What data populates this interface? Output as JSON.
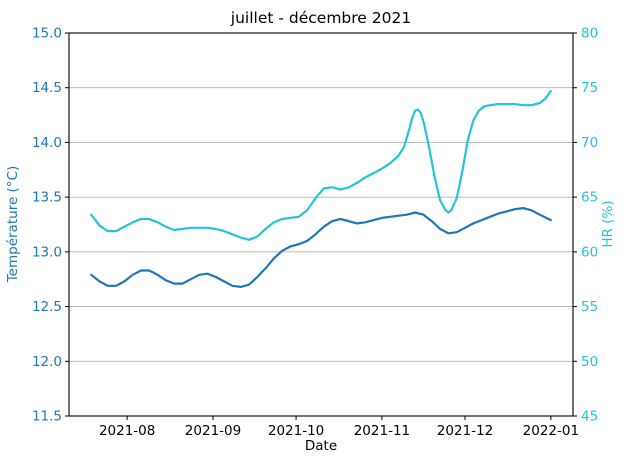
{
  "colors": {
    "temperature": "#1f77b4",
    "humidity": "#25c3d9",
    "grid": "#b2b2b2",
    "spine": "#000000",
    "title_text": "#000000",
    "x_tick_text": "#000000"
  },
  "chart_data": {
    "type": "line",
    "title": "juillet - décembre 2021",
    "xlabel": "Date",
    "ylabel_left": "Température (°C)",
    "ylabel_right": "HR (%)",
    "grid": "horizontal",
    "legend": "none",
    "xlim": [
      "2021-07-11",
      "2022-01-09"
    ],
    "ylim_left": [
      11.5,
      15.0
    ],
    "ylim_right": [
      45,
      80
    ],
    "y_left_ticks": [
      "15.0",
      "14.5",
      "14.0",
      "13.5",
      "13.0",
      "12.5",
      "12.0",
      "11.5"
    ],
    "y_right_ticks": [
      "80",
      "75",
      "70",
      "65",
      "60",
      "55",
      "50",
      "45"
    ],
    "x_ticks": [
      {
        "date": "2021-08-01",
        "label": "2021-08"
      },
      {
        "date": "2021-09-01",
        "label": "2021-09"
      },
      {
        "date": "2021-10-01",
        "label": "2021-10"
      },
      {
        "date": "2021-11-01",
        "label": "2021-11"
      },
      {
        "date": "2021-12-01",
        "label": "2021-12"
      },
      {
        "date": "2022-01-01",
        "label": "2022-01"
      }
    ],
    "series": [
      {
        "name": "Température",
        "axis": "left",
        "unit": "°C",
        "color": "#1f77b4",
        "dates": [
          "2021-07-19",
          "2021-07-22",
          "2021-07-25",
          "2021-07-28",
          "2021-07-31",
          "2021-08-03",
          "2021-08-06",
          "2021-08-09",
          "2021-08-12",
          "2021-08-15",
          "2021-08-18",
          "2021-08-21",
          "2021-08-24",
          "2021-08-27",
          "2021-08-30",
          "2021-09-02",
          "2021-09-05",
          "2021-09-08",
          "2021-09-11",
          "2021-09-14",
          "2021-09-17",
          "2021-09-20",
          "2021-09-23",
          "2021-09-26",
          "2021-09-29",
          "2021-10-02",
          "2021-10-05",
          "2021-10-08",
          "2021-10-11",
          "2021-10-14",
          "2021-10-17",
          "2021-10-20",
          "2021-10-23",
          "2021-10-26",
          "2021-10-29",
          "2021-11-01",
          "2021-11-04",
          "2021-11-07",
          "2021-11-10",
          "2021-11-13",
          "2021-11-16",
          "2021-11-19",
          "2021-11-22",
          "2021-11-25",
          "2021-11-28",
          "2021-12-01",
          "2021-12-04",
          "2021-12-07",
          "2021-12-10",
          "2021-12-13",
          "2021-12-16",
          "2021-12-19",
          "2021-12-22",
          "2021-12-25",
          "2021-12-28",
          "2022-01-01"
        ],
        "values": [
          12.79,
          12.73,
          12.69,
          12.69,
          12.73,
          12.79,
          12.83,
          12.83,
          12.79,
          12.74,
          12.71,
          12.71,
          12.75,
          12.79,
          12.8,
          12.77,
          12.73,
          12.69,
          12.68,
          12.7,
          12.77,
          12.85,
          12.94,
          13.01,
          13.05,
          13.07,
          13.1,
          13.16,
          13.23,
          13.28,
          13.3,
          13.28,
          13.26,
          13.27,
          13.29,
          13.31,
          13.32,
          13.33,
          13.34,
          13.36,
          13.34,
          13.28,
          13.21,
          13.17,
          13.18,
          13.22,
          13.26,
          13.29,
          13.32,
          13.35,
          13.37,
          13.39,
          13.4,
          13.38,
          13.34,
          13.29
        ]
      },
      {
        "name": "HR",
        "axis": "right",
        "unit": "%",
        "color": "#25c3d9",
        "dates": [
          "2021-07-19",
          "2021-07-22",
          "2021-07-25",
          "2021-07-28",
          "2021-07-31",
          "2021-08-03",
          "2021-08-06",
          "2021-08-09",
          "2021-08-12",
          "2021-08-15",
          "2021-08-18",
          "2021-08-21",
          "2021-08-24",
          "2021-08-27",
          "2021-08-30",
          "2021-09-02",
          "2021-09-05",
          "2021-09-08",
          "2021-09-11",
          "2021-09-14",
          "2021-09-17",
          "2021-09-20",
          "2021-09-23",
          "2021-09-26",
          "2021-09-29",
          "2021-10-02",
          "2021-10-05",
          "2021-10-08",
          "2021-10-11",
          "2021-10-14",
          "2021-10-17",
          "2021-10-20",
          "2021-10-23",
          "2021-10-26",
          "2021-10-29",
          "2021-11-01",
          "2021-11-04",
          "2021-11-07",
          "2021-11-09",
          "2021-11-11",
          "2021-11-12",
          "2021-11-13",
          "2021-11-14",
          "2021-11-15",
          "2021-11-16",
          "2021-11-18",
          "2021-11-20",
          "2021-11-22",
          "2021-11-24",
          "2021-11-25",
          "2021-11-26",
          "2021-11-28",
          "2021-11-30",
          "2021-12-02",
          "2021-12-04",
          "2021-12-06",
          "2021-12-08",
          "2021-12-10",
          "2021-12-13",
          "2021-12-16",
          "2021-12-19",
          "2021-12-22",
          "2021-12-25",
          "2021-12-28",
          "2021-12-30",
          "2022-01-01"
        ],
        "values": [
          63.4,
          62.4,
          61.9,
          61.9,
          62.3,
          62.7,
          63.0,
          63.0,
          62.7,
          62.3,
          62.0,
          62.1,
          62.2,
          62.2,
          62.2,
          62.1,
          61.9,
          61.6,
          61.3,
          61.1,
          61.4,
          62.1,
          62.7,
          63.0,
          63.1,
          63.2,
          63.8,
          64.9,
          65.8,
          65.9,
          65.7,
          65.9,
          66.3,
          66.8,
          67.2,
          67.6,
          68.1,
          68.8,
          69.6,
          71.3,
          72.3,
          72.9,
          73.0,
          72.7,
          71.9,
          69.6,
          66.9,
          64.7,
          63.8,
          63.6,
          63.8,
          64.9,
          67.3,
          70.2,
          72.0,
          72.9,
          73.3,
          73.4,
          73.5,
          73.5,
          73.5,
          73.4,
          73.4,
          73.6,
          74.0,
          74.7
        ]
      }
    ]
  }
}
